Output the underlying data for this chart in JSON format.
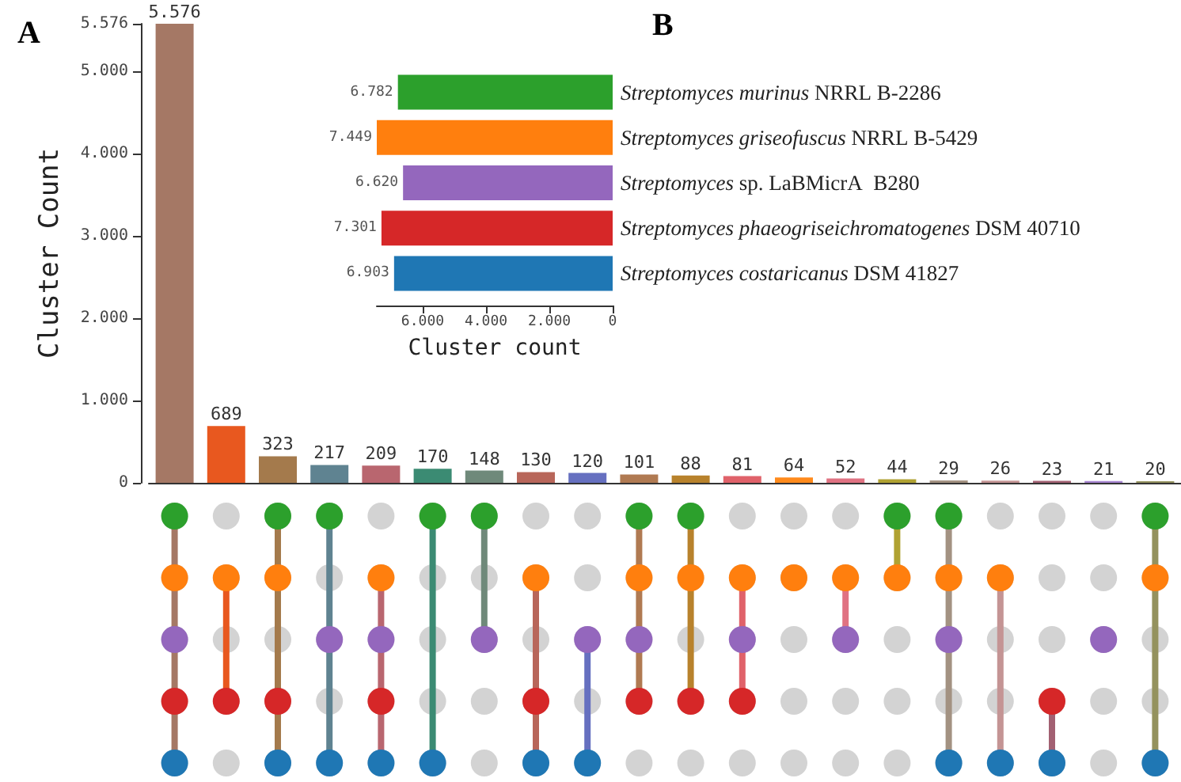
{
  "chart_data": [
    {
      "type": "bar",
      "title": "A",
      "annotations": [
        "B"
      ],
      "categories": [
        null,
        null,
        null,
        null,
        null,
        null,
        null,
        null,
        null,
        null,
        null,
        null,
        null,
        null,
        null,
        null,
        null,
        null,
        null,
        null
      ],
      "values": [
        5576,
        689,
        323,
        217,
        209,
        170,
        148,
        130,
        120,
        101,
        88,
        81,
        64,
        52,
        44,
        29,
        26,
        23,
        21,
        20
      ],
      "colors": [
        "#a57865",
        "#e8581f",
        "#a47a4c",
        "#5f8391",
        "#b9666f",
        "#3b8b73",
        "#6f897a",
        "#b8665a",
        "#6670c0",
        "#b07a52",
        "#b8822c",
        "#e0626a",
        "#ff8a1c",
        "#e07282",
        "#b0a232",
        "#a39282",
        "#c49494",
        "#a26072",
        "#a684d0",
        "#94925e"
      ],
      "value_labels": [
        "5.576",
        "689",
        "323",
        "217",
        "209",
        "170",
        "148",
        "130",
        "120",
        "101",
        "88",
        "81",
        "64",
        "52",
        "44",
        "29",
        "26",
        "23",
        "21",
        "20"
      ],
      "ylabel": "Cluster Count",
      "ylim": [
        0,
        5576
      ],
      "yticks": [
        0,
        {
          "value": 1000,
          "label": "1.000"
        },
        {
          "value": 2000,
          "label": "2.000"
        },
        {
          "value": 3000,
          "label": "3.000"
        },
        {
          "value": 4000,
          "label": "4.000"
        },
        {
          "value": 5000,
          "label": "5.000"
        },
        {
          "value": 5576,
          "label": "5.576"
        }
      ],
      "tick_labels": "y"
    },
    {
      "type": "bar",
      "orientation": "horizontal",
      "categories": [
        "Streptomyces murinus NRRL B-2286",
        "Streptomyces griseofuscus NRRL B-5429",
        "Streptomyces sp. LaBMicrA  B280",
        "Streptomyces phaeogriseichromatogenes DSM 40710",
        "Streptomyces costaricanus DSM 41827"
      ],
      "values": [
        6782,
        7449,
        6620,
        7301,
        6903
      ],
      "colors": [
        "#2ca02c",
        "#ff7f0e",
        "#9467bd",
        "#d62728",
        "#1f77b4"
      ],
      "value_labels": [
        "6.782",
        "7.449",
        "6.620",
        "7.301",
        "6.903"
      ],
      "xlabel": "Cluster count",
      "xlim": [
        7449,
        0
      ],
      "xticks": [
        {
          "value": 6000,
          "label": "6.000"
        },
        {
          "value": 4000,
          "label": "4.000"
        },
        {
          "value": 2000,
          "label": "2.000"
        },
        0
      ]
    }
  ]
}
